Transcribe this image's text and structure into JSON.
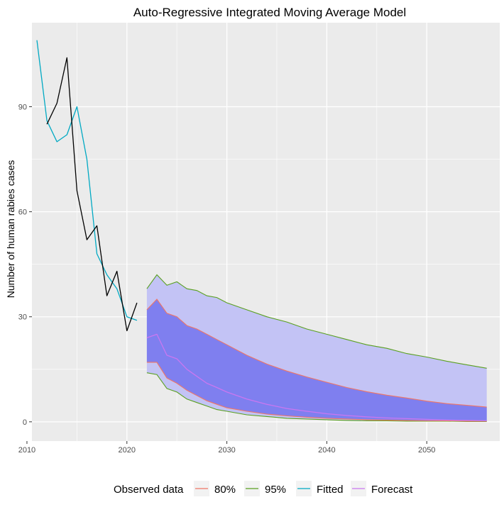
{
  "chart_data": {
    "type": "line",
    "title": "Auto-Regressive Integrated Moving Average Model",
    "xlabel": "",
    "ylabel": "Number of human rabies cases",
    "xlim": [
      2010.5,
      2057.3
    ],
    "ylim": [
      -5.5,
      114
    ],
    "x_ticks": [
      2010,
      2020,
      2030,
      2040,
      2050
    ],
    "y_ticks": [
      0,
      30,
      60,
      90
    ],
    "grid": true,
    "legend": {
      "title": "Observed data",
      "position": "bottom",
      "entries": [
        "80%",
        "95%",
        "Fitted",
        "Forecast"
      ]
    },
    "colors": {
      "panel": "#ebebeb",
      "grid": "#ffffff",
      "observed": "#000000",
      "fitted": "#00a9c3",
      "forecast": "#ca77f0",
      "band80_line": "#f07565",
      "band95_line": "#5aa020",
      "band80_fill": "#7f7fef",
      "band95_fill": "#c3c3f5"
    },
    "series": [
      {
        "name": "Observed data",
        "x": [
          2012,
          2013,
          2014,
          2015,
          2016,
          2017,
          2018,
          2019,
          2020,
          2021
        ],
        "y": [
          85,
          91,
          104,
          66,
          52,
          56,
          36,
          43,
          26,
          34
        ]
      },
      {
        "name": "Fitted",
        "x": [
          2011,
          2012,
          2013,
          2014,
          2015,
          2016,
          2017,
          2018,
          2019,
          2020,
          2021
        ],
        "y": [
          109,
          86,
          80,
          82,
          90,
          75,
          48,
          42,
          38,
          30,
          29
        ]
      },
      {
        "name": "Forecast",
        "x": [
          2022,
          2023,
          2024,
          2025,
          2026,
          2027,
          2028,
          2029,
          2030,
          2032,
          2034,
          2036,
          2038,
          2040,
          2042,
          2044,
          2046,
          2048,
          2050,
          2052,
          2054,
          2056
        ],
        "y": [
          24,
          25,
          19,
          18,
          15,
          13,
          11,
          9.8,
          8.5,
          6.5,
          5,
          3.8,
          3,
          2.3,
          1.8,
          1.4,
          1.1,
          0.9,
          0.7,
          0.5,
          0.4,
          0.3
        ]
      }
    ],
    "bands": [
      {
        "name": "95%",
        "x": [
          2022,
          2023,
          2024,
          2025,
          2026,
          2027,
          2028,
          2029,
          2030,
          2032,
          2034,
          2036,
          2038,
          2040,
          2042,
          2044,
          2046,
          2048,
          2050,
          2052,
          2054,
          2056
        ],
        "lower": [
          14,
          13.5,
          9.5,
          8.5,
          6.5,
          5.5,
          4.5,
          3.5,
          3,
          2,
          1.5,
          1,
          0.8,
          0.6,
          0.4,
          0.3,
          0.3,
          0.2,
          0.2,
          0.2,
          0.1,
          0.1
        ],
        "upper": [
          38,
          42,
          39,
          40,
          38,
          37.5,
          36,
          35.5,
          34,
          32,
          30,
          28.5,
          26.5,
          25,
          23.5,
          22,
          21,
          19.5,
          18.5,
          17.3,
          16.3,
          15.3
        ]
      },
      {
        "name": "80%",
        "x": [
          2022,
          2023,
          2024,
          2025,
          2026,
          2027,
          2028,
          2029,
          2030,
          2032,
          2034,
          2036,
          2038,
          2040,
          2042,
          2044,
          2046,
          2048,
          2050,
          2052,
          2054,
          2056
        ],
        "lower": [
          17,
          17,
          12.5,
          11,
          9,
          7.5,
          6,
          5,
          4,
          3,
          2.2,
          1.7,
          1.3,
          1,
          0.8,
          0.6,
          0.5,
          0.4,
          0.3,
          0.3,
          0.2,
          0.2
        ],
        "upper": [
          32,
          35,
          31,
          30,
          27.5,
          26.5,
          25,
          23.5,
          22,
          19,
          16.5,
          14.5,
          12.8,
          11.3,
          9.8,
          8.6,
          7.6,
          6.8,
          5.9,
          5.2,
          4.7,
          4.2
        ]
      }
    ]
  }
}
